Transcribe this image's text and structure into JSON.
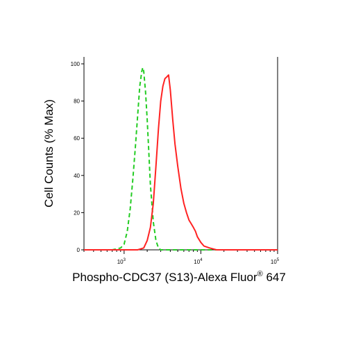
{
  "chart_data": {
    "type": "line",
    "xlabel": {
      "main": "Phospho-CDC37 (S13)-Alexa Fluor",
      "registered": "®",
      "suffix": " 647"
    },
    "ylabel": "Cell Counts (% Max)",
    "x_scale": "log",
    "xlim": [
      300,
      100000
    ],
    "ylim": [
      0,
      100
    ],
    "y_ticks": [
      "0",
      "20",
      "40",
      "60",
      "80",
      "100"
    ],
    "x_ticks": [
      {
        "base": "10",
        "exp": "3",
        "value": 1000
      },
      {
        "base": "10",
        "exp": "4",
        "value": 10000
      },
      {
        "base": "10",
        "exp": "5",
        "value": 100000
      }
    ],
    "series": [
      {
        "color": "#22cc22",
        "style": "dashed",
        "points": [
          [
            300,
            0
          ],
          [
            700,
            0
          ],
          [
            900,
            1
          ],
          [
            1000,
            3
          ],
          [
            1100,
            10
          ],
          [
            1200,
            22
          ],
          [
            1300,
            38
          ],
          [
            1400,
            55
          ],
          [
            1500,
            72
          ],
          [
            1600,
            88
          ],
          [
            1700,
            96
          ],
          [
            1750,
            98
          ],
          [
            1800,
            96
          ],
          [
            1900,
            85
          ],
          [
            2000,
            70
          ],
          [
            2100,
            52
          ],
          [
            2200,
            35
          ],
          [
            2400,
            15
          ],
          [
            2600,
            5
          ],
          [
            2800,
            1
          ],
          [
            3000,
            0
          ],
          [
            100000,
            0
          ]
        ]
      },
      {
        "color": "#ff2222",
        "style": "solid",
        "points": [
          [
            300,
            0
          ],
          [
            1500,
            0
          ],
          [
            1800,
            1
          ],
          [
            2000,
            5
          ],
          [
            2200,
            12
          ],
          [
            2400,
            25
          ],
          [
            2600,
            45
          ],
          [
            2800,
            65
          ],
          [
            3000,
            80
          ],
          [
            3200,
            88
          ],
          [
            3400,
            92
          ],
          [
            3600,
            93
          ],
          [
            3800,
            94
          ],
          [
            4000,
            86
          ],
          [
            4300,
            70
          ],
          [
            4600,
            57
          ],
          [
            5000,
            45
          ],
          [
            5500,
            33
          ],
          [
            6000,
            25
          ],
          [
            6500,
            20
          ],
          [
            7000,
            16
          ],
          [
            7500,
            14
          ],
          [
            8000,
            12
          ],
          [
            8500,
            10
          ],
          [
            9000,
            7
          ],
          [
            10000,
            4
          ],
          [
            11000,
            2
          ],
          [
            13000,
            1
          ],
          [
            16000,
            0
          ],
          [
            100000,
            0
          ]
        ]
      }
    ]
  }
}
